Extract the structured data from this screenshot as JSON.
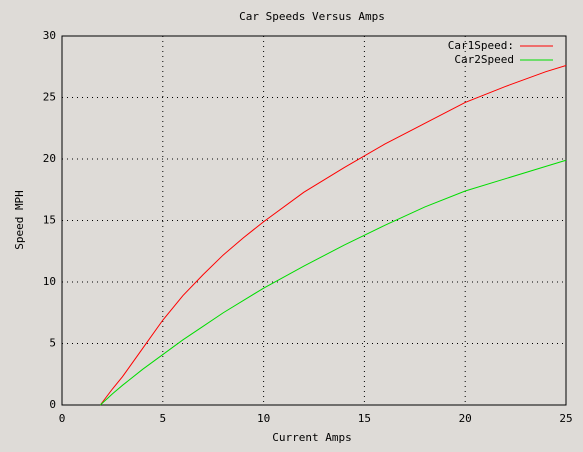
{
  "chart_data": {
    "type": "line",
    "title": "Car Speeds Versus Amps",
    "x_label": "Current Amps",
    "y_label": "Speed MPH",
    "x": [
      1.9,
      2.5,
      3,
      4,
      5,
      6,
      7,
      8,
      9,
      10,
      12,
      14,
      16,
      18,
      20,
      22,
      24,
      25
    ],
    "series": [
      {
        "name": "Car1Speed:",
        "color": "#ff0000",
        "values": [
          0,
          1.3,
          2.3,
          4.6,
          6.9,
          8.9,
          10.6,
          12.2,
          13.6,
          14.9,
          17.3,
          19.3,
          21.2,
          22.9,
          24.6,
          25.9,
          27.1,
          27.6
        ]
      },
      {
        "name": "Car2Speed",
        "color": "#00dd00",
        "values": [
          0,
          0.9,
          1.6,
          2.9,
          4.1,
          5.3,
          6.4,
          7.5,
          8.5,
          9.5,
          11.3,
          13.0,
          14.6,
          16.1,
          17.4,
          18.4,
          19.4,
          19.9
        ]
      }
    ],
    "xlim": [
      0,
      25
    ],
    "xticks": [
      0,
      5,
      10,
      15,
      20,
      25
    ],
    "ylim": [
      0,
      30
    ],
    "yticks": [
      0,
      5,
      10,
      15,
      20,
      25,
      30
    ],
    "grid": true,
    "legend": "top-right"
  }
}
